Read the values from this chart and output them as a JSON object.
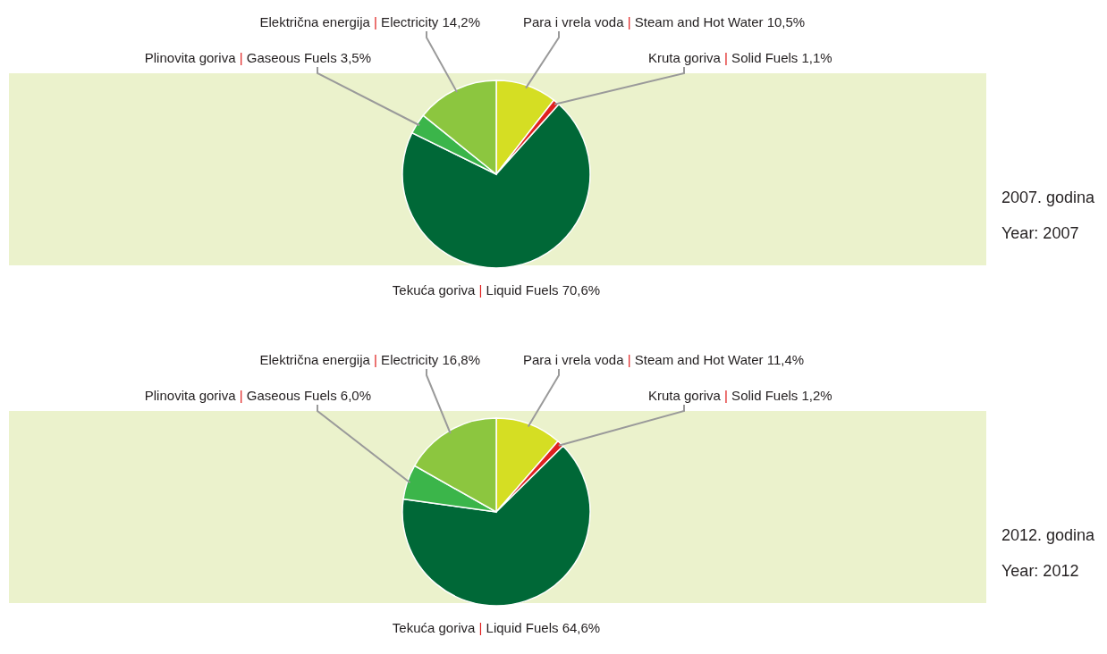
{
  "chart_data": [
    {
      "type": "pie",
      "title": "2007. godina",
      "subtitle": "Year: 2007",
      "categories": [
        "Para i vrela voda | Steam and Hot Water",
        "Kruta goriva | Solid Fuels",
        "Tekuća goriva | Liquid Fuels",
        "Plinovita goriva | Gaseous Fuels",
        "Električna energija | Electricity"
      ],
      "values": [
        10.5,
        1.1,
        70.6,
        3.5,
        14.2
      ],
      "value_labels": [
        "10,5%",
        "1,1%",
        "70,6%",
        "3,5%",
        "14,2%"
      ],
      "colors": [
        "#d5de23",
        "#e0201f",
        "#006837",
        "#3bb54a",
        "#8cc63f"
      ]
    },
    {
      "type": "pie",
      "title": "2012. godina",
      "subtitle": "Year: 2012",
      "categories": [
        "Para i vrela voda | Steam and Hot Water",
        "Kruta goriva | Solid Fuels",
        "Tekuća goriva | Liquid Fuels",
        "Plinovita goriva | Gaseous Fuels",
        "Električna energija | Electricity"
      ],
      "values": [
        11.4,
        1.2,
        64.6,
        6.0,
        16.8
      ],
      "value_labels": [
        "11,4%",
        "1,2%",
        "64,6%",
        "6,0%",
        "16,8%"
      ],
      "colors": [
        "#d5de23",
        "#e0201f",
        "#006837",
        "#3bb54a",
        "#8cc63f"
      ]
    }
  ]
}
